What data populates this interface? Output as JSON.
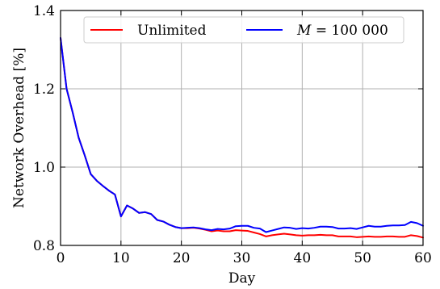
{
  "chart_data": {
    "type": "line",
    "title": "",
    "xlabel": "Day",
    "ylabel": "Network Overhead [%]",
    "xlim": [
      0,
      60
    ],
    "ylim": [
      0.8,
      1.4
    ],
    "xticks": [
      "0",
      "10",
      "20",
      "30",
      "40",
      "50",
      "60"
    ],
    "yticks": [
      "0.8",
      "1.0",
      "1.2",
      "1.4"
    ],
    "grid": true,
    "legend_position": "top",
    "series": [
      {
        "name": "Unlimited",
        "color": "#ff0000",
        "x": [
          0,
          1,
          2,
          3,
          4,
          5,
          6,
          7,
          8,
          9,
          10,
          11,
          12,
          13,
          14,
          15,
          16,
          17,
          18,
          19,
          20,
          21,
          22,
          23,
          24,
          25,
          26,
          27,
          28,
          29,
          30,
          31,
          32,
          33,
          34,
          35,
          36,
          37,
          38,
          39,
          40,
          41,
          42,
          43,
          44,
          45,
          46,
          47,
          48,
          49,
          50,
          51,
          52,
          53,
          54,
          55,
          56,
          57,
          58,
          59,
          60
        ],
        "y": [
          1.33,
          1.2,
          1.14,
          1.075,
          1.03,
          0.982,
          0.965,
          0.952,
          0.94,
          0.93,
          0.874,
          0.902,
          0.894,
          0.883,
          0.885,
          0.88,
          0.865,
          0.861,
          0.853,
          0.847,
          0.844,
          0.844,
          0.845,
          0.843,
          0.84,
          0.836,
          0.838,
          0.836,
          0.836,
          0.839,
          0.838,
          0.837,
          0.833,
          0.829,
          0.823,
          0.826,
          0.828,
          0.83,
          0.828,
          0.826,
          0.825,
          0.826,
          0.826,
          0.827,
          0.826,
          0.826,
          0.823,
          0.823,
          0.823,
          0.821,
          0.822,
          0.823,
          0.822,
          0.822,
          0.823,
          0.823,
          0.822,
          0.822,
          0.826,
          0.824,
          0.82
        ]
      },
      {
        "name": "M = 100 000",
        "color": "#0000ff",
        "x": [
          0,
          1,
          2,
          3,
          4,
          5,
          6,
          7,
          8,
          9,
          10,
          11,
          12,
          13,
          14,
          15,
          16,
          17,
          18,
          19,
          20,
          21,
          22,
          23,
          24,
          25,
          26,
          27,
          28,
          29,
          30,
          31,
          32,
          33,
          34,
          35,
          36,
          37,
          38,
          39,
          40,
          41,
          42,
          43,
          44,
          45,
          46,
          47,
          48,
          49,
          50,
          51,
          52,
          53,
          54,
          55,
          56,
          57,
          58,
          59,
          60
        ],
        "y": [
          1.33,
          1.2,
          1.14,
          1.075,
          1.03,
          0.982,
          0.965,
          0.952,
          0.94,
          0.93,
          0.874,
          0.902,
          0.894,
          0.883,
          0.885,
          0.88,
          0.865,
          0.861,
          0.853,
          0.847,
          0.844,
          0.845,
          0.846,
          0.844,
          0.841,
          0.839,
          0.842,
          0.841,
          0.843,
          0.849,
          0.85,
          0.85,
          0.845,
          0.843,
          0.834,
          0.838,
          0.842,
          0.846,
          0.845,
          0.842,
          0.844,
          0.843,
          0.845,
          0.848,
          0.848,
          0.847,
          0.843,
          0.843,
          0.844,
          0.842,
          0.846,
          0.85,
          0.848,
          0.848,
          0.85,
          0.851,
          0.851,
          0.852,
          0.86,
          0.857,
          0.85
        ]
      }
    ]
  },
  "legend": {
    "unlimited_label": "Unlimited",
    "m_label_var": "M",
    "m_label_rest": " = 100 000"
  }
}
